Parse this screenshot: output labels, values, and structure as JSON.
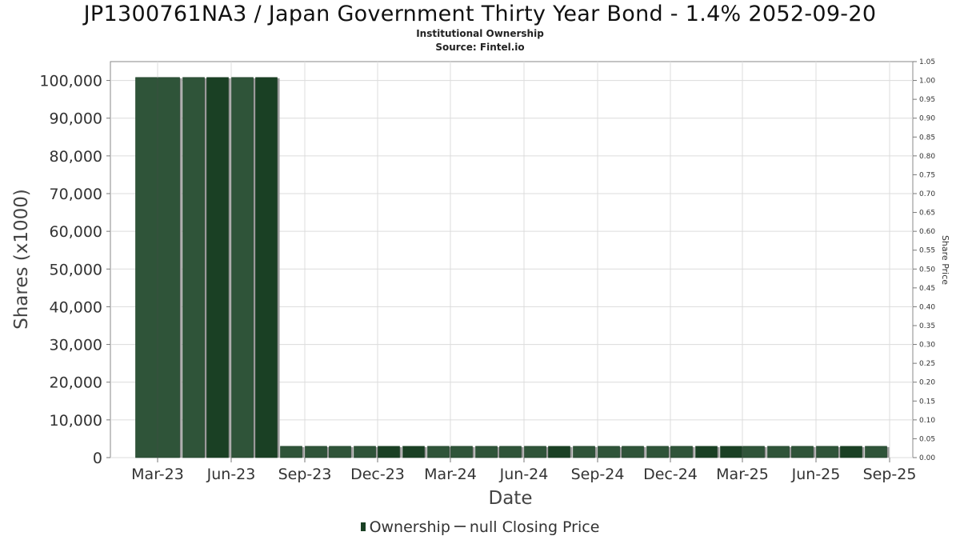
{
  "chart_data": {
    "type": "bar",
    "title": "JP1300761NA3 / Japan Government Thirty Year Bond - 1.4% 2052-09-20",
    "subtitle": "Institutional Ownership",
    "source": "Source: Fintel.io",
    "xlabel": "Date",
    "ylabel": "Shares (x1000)",
    "y2label": "Share Price",
    "x_ticks": [
      "Mar-23",
      "Jun-23",
      "Sep-23",
      "Dec-23",
      "Mar-24",
      "Jun-24",
      "Sep-24",
      "Dec-24",
      "Mar-25",
      "Jun-25",
      "Sep-25"
    ],
    "y_ticks": [
      "0",
      "10,000",
      "20,000",
      "30,000",
      "40,000",
      "50,000",
      "60,000",
      "70,000",
      "80,000",
      "90,000",
      "100,000"
    ],
    "y2_ticks": [
      "0.00",
      "0.05",
      "0.10",
      "0.15",
      "0.20",
      "0.25",
      "0.30",
      "0.35",
      "0.40",
      "0.45",
      "0.50",
      "0.55",
      "0.60",
      "0.65",
      "0.70",
      "0.75",
      "0.80",
      "0.85",
      "0.90",
      "0.95",
      "1.00",
      "1.05"
    ],
    "ylim": [
      0,
      105000
    ],
    "y2lim": [
      0,
      1.05
    ],
    "x_range": [
      "2023-01-01",
      "2025-09-30"
    ],
    "grid": true,
    "legend_position": "bottom",
    "legend": [
      "Ownership",
      "null Closing Price"
    ],
    "series": [
      {
        "name": "Ownership",
        "color": "#1a4024",
        "x": [
          "2023-02-15",
          "2023-03-15",
          "2023-04-15",
          "2023-05-15",
          "2023-06-15",
          "2023-07-15",
          "2023-08-15",
          "2023-09-15",
          "2023-10-15",
          "2023-11-15",
          "2023-12-15",
          "2024-01-15",
          "2024-02-15",
          "2024-03-15",
          "2024-04-15",
          "2024-05-15",
          "2024-06-15",
          "2024-07-15",
          "2024-08-15",
          "2024-09-15",
          "2024-10-15",
          "2024-11-15",
          "2024-12-15",
          "2025-01-15",
          "2025-02-15",
          "2025-03-15",
          "2025-04-15",
          "2025-05-15",
          "2025-06-15",
          "2025-07-15",
          "2025-08-15"
        ],
        "values": [
          100800,
          100800,
          100800,
          100800,
          100800,
          100800,
          3000,
          3000,
          3000,
          3000,
          3000,
          3000,
          3000,
          3000,
          3000,
          3000,
          3000,
          3000,
          3000,
          3000,
          3000,
          3000,
          3000,
          3000,
          3000,
          3000,
          3000,
          3000,
          3000,
          3000,
          3000
        ]
      }
    ]
  }
}
